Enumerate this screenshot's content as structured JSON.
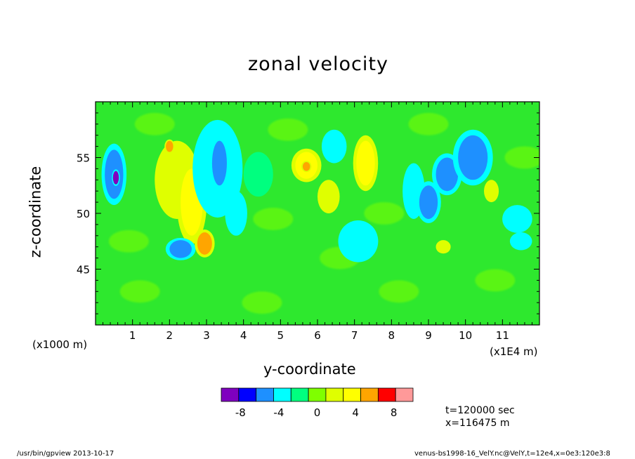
{
  "chart_data": {
    "type": "heatmap",
    "title": "zonal velocity",
    "xlabel": "y-coordinate",
    "ylabel": "z-coordinate",
    "x_unit_note": "(x1E4 m)",
    "y_unit_note": "(x1000 m)",
    "xlim": [
      0,
      12
    ],
    "ylim": [
      40,
      60
    ],
    "x_ticks": [
      1,
      2,
      3,
      4,
      5,
      6,
      7,
      8,
      9,
      10,
      11
    ],
    "x_tick_labels": [
      "1",
      "2",
      "3",
      "4",
      "5",
      "6",
      "7",
      "8",
      "9",
      "10",
      "11"
    ],
    "y_ticks": [
      45,
      50,
      55
    ],
    "y_tick_labels": [
      "45",
      "50",
      "55"
    ],
    "colorbar": {
      "levels": [
        -10,
        -8,
        -6,
        -4,
        -2,
        0,
        2,
        4,
        6,
        8,
        10
      ],
      "colors": [
        "#7f00bf",
        "#0000ff",
        "#1e90ff",
        "#00ffff",
        "#00ff7f",
        "#7fff00",
        "#dfff00",
        "#ffff00",
        "#ffa500",
        "#ff0000",
        "#ff9999"
      ],
      "tick_labels": [
        "-8",
        "-4",
        "0",
        "4",
        "8"
      ],
      "tick_values": [
        -8,
        -4,
        0,
        4,
        8
      ]
    },
    "background_color": "#2ee82e",
    "features": [
      {
        "cx": 0.5,
        "cy": 53.5,
        "rx": 0.25,
        "ry": 2.2,
        "value": -5
      },
      {
        "cx": 0.55,
        "cy": 53.2,
        "rx": 0.08,
        "ry": 0.6,
        "value": -9
      },
      {
        "cx": 2.2,
        "cy": 53.0,
        "rx": 0.6,
        "ry": 3.5,
        "value": 3
      },
      {
        "cx": 2.6,
        "cy": 51.0,
        "rx": 0.3,
        "ry": 3.0,
        "value": 4
      },
      {
        "cx": 2.0,
        "cy": 56.0,
        "rx": 0.1,
        "ry": 0.5,
        "value": 6
      },
      {
        "cx": 2.95,
        "cy": 47.3,
        "rx": 0.2,
        "ry": 1.0,
        "value": 6
      },
      {
        "cx": 2.3,
        "cy": 46.8,
        "rx": 0.3,
        "ry": 0.8,
        "value": -5
      },
      {
        "cx": 3.3,
        "cy": 54.0,
        "rx": 0.5,
        "ry": 3.5,
        "value": -4
      },
      {
        "cx": 3.35,
        "cy": 54.5,
        "rx": 0.2,
        "ry": 2.0,
        "value": -6
      },
      {
        "cx": 3.8,
        "cy": 50.0,
        "rx": 0.3,
        "ry": 2.0,
        "value": -3
      },
      {
        "cx": 4.4,
        "cy": 53.5,
        "rx": 0.4,
        "ry": 2.0,
        "value": -2
      },
      {
        "cx": 5.7,
        "cy": 54.3,
        "rx": 0.3,
        "ry": 1.2,
        "value": 4
      },
      {
        "cx": 5.7,
        "cy": 54.2,
        "rx": 0.1,
        "ry": 0.4,
        "value": 7
      },
      {
        "cx": 6.3,
        "cy": 51.5,
        "rx": 0.3,
        "ry": 1.5,
        "value": 2
      },
      {
        "cx": 6.45,
        "cy": 56.0,
        "rx": 0.25,
        "ry": 1.2,
        "value": -4
      },
      {
        "cx": 7.3,
        "cy": 54.5,
        "rx": 0.25,
        "ry": 2.0,
        "value": 4
      },
      {
        "cx": 7.1,
        "cy": 47.5,
        "rx": 0.4,
        "ry": 1.5,
        "value": -4
      },
      {
        "cx": 8.6,
        "cy": 52.0,
        "rx": 0.3,
        "ry": 2.5,
        "value": -3
      },
      {
        "cx": 9.0,
        "cy": 51.0,
        "rx": 0.25,
        "ry": 1.5,
        "value": -5
      },
      {
        "cx": 9.5,
        "cy": 53.5,
        "rx": 0.3,
        "ry": 1.5,
        "value": -5
      },
      {
        "cx": 10.2,
        "cy": 55.0,
        "rx": 0.4,
        "ry": 2.0,
        "value": -5
      },
      {
        "cx": 10.7,
        "cy": 52.0,
        "rx": 0.2,
        "ry": 1.0,
        "value": 3
      },
      {
        "cx": 11.4,
        "cy": 49.5,
        "rx": 0.3,
        "ry": 1.0,
        "value": -4
      },
      {
        "cx": 11.5,
        "cy": 47.5,
        "rx": 0.3,
        "ry": 0.8,
        "value": -3
      },
      {
        "cx": 9.4,
        "cy": 47.0,
        "rx": 0.2,
        "ry": 0.6,
        "value": 3
      }
    ]
  },
  "annotations": {
    "time": "t=120000 sec",
    "xpos": "x=116475 m"
  },
  "footer": {
    "left": "/usr/bin/gpview   2013-10-17",
    "right": "venus-bs1998-16_VelY.nc@VelY,t=12e4,x=0e3:120e3:8"
  }
}
